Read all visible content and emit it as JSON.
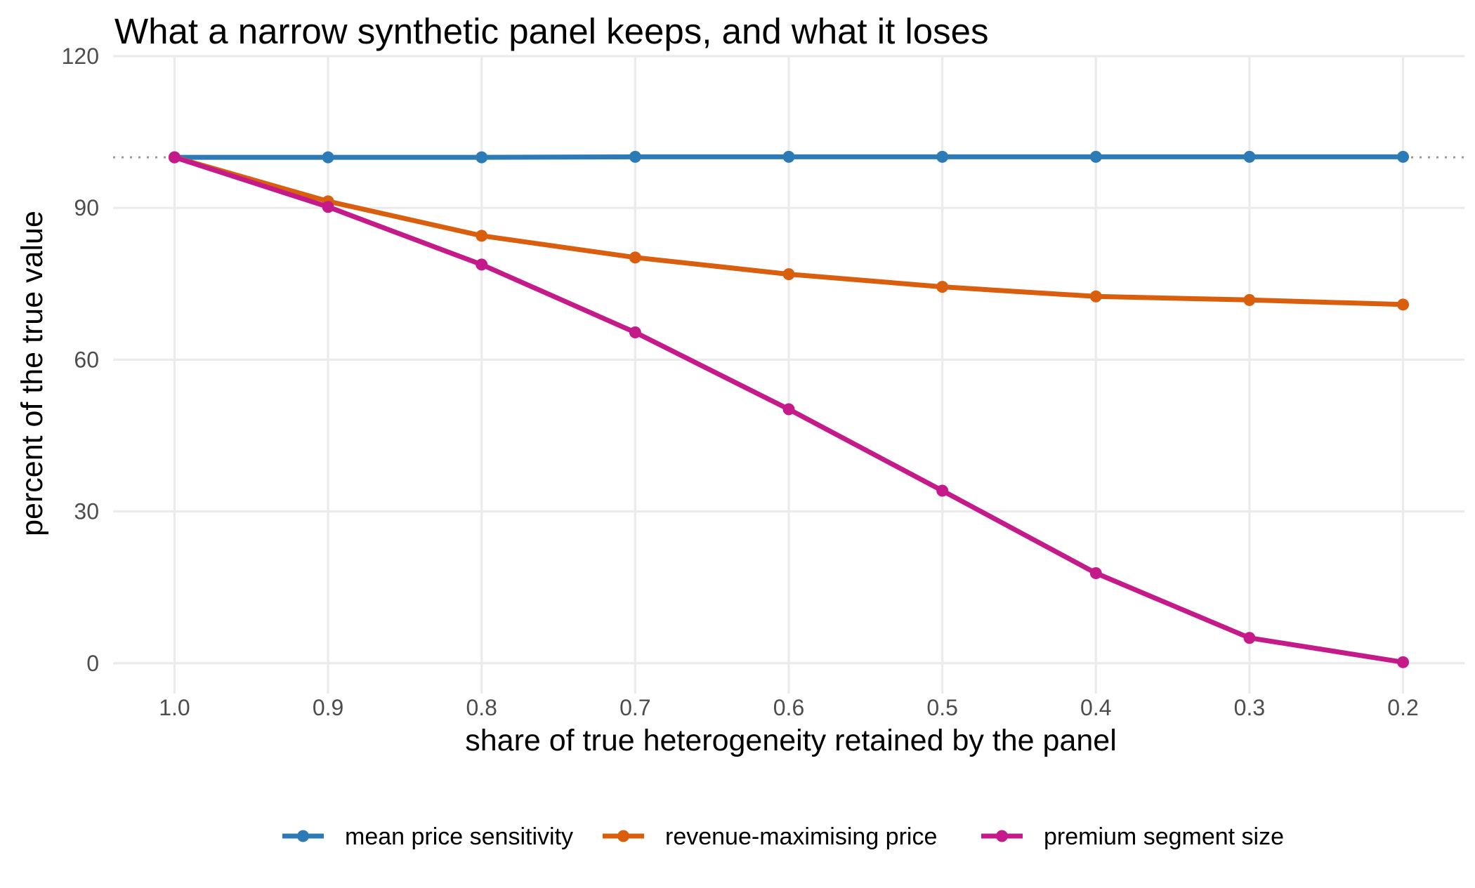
{
  "chart_data": {
    "type": "line",
    "title": "What a narrow synthetic panel keeps, and what it loses",
    "xlabel": "share of true heterogeneity retained by the panel",
    "ylabel": "percent of the true value",
    "x": [
      1.0,
      0.9,
      0.8,
      0.7,
      0.6,
      0.5,
      0.4,
      0.3,
      0.2
    ],
    "x_tick_labels": [
      "1.0",
      "0.9",
      "0.8",
      "0.7",
      "0.6",
      "0.5",
      "0.4",
      "0.3",
      "0.2"
    ],
    "x_axis_reversed": true,
    "xlim": [
      1.04,
      0.16
    ],
    "ylim": [
      -6,
      120
    ],
    "y_ticks": [
      0,
      30,
      60,
      90,
      120
    ],
    "reference_line_y": 100,
    "grid": true,
    "legend_position": "bottom",
    "series": [
      {
        "name": "mean price sensitivity",
        "color": "#2C7BB6",
        "values": [
          100,
          100,
          100,
          100.1,
          100.1,
          100.1,
          100.1,
          100.1,
          100.1
        ]
      },
      {
        "name": "revenue-maximising price",
        "color": "#D95F0E",
        "values": [
          100,
          91.3,
          84.5,
          80.2,
          76.9,
          74.4,
          72.5,
          71.8,
          70.9
        ]
      },
      {
        "name": "premium segment size",
        "color": "#C51B8A",
        "values": [
          100,
          90.2,
          78.8,
          65.4,
          50.2,
          34.1,
          17.8,
          5.0,
          0.2
        ]
      }
    ]
  }
}
